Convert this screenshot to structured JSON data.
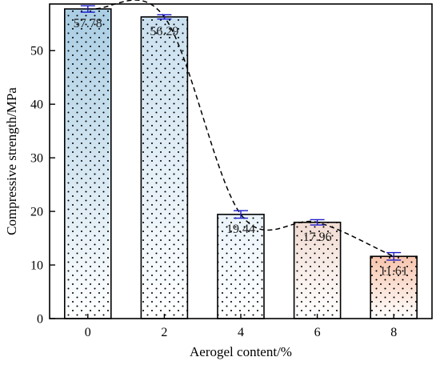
{
  "chart_data": {
    "type": "bar",
    "title": "",
    "xlabel": "Aerogel content/%",
    "ylabel": "Compressive strength/MPa",
    "categories": [
      "0",
      "2",
      "4",
      "6",
      "8"
    ],
    "values": [
      57.78,
      56.29,
      19.44,
      17.96,
      11.61
    ],
    "data_labels": [
      "57.78",
      "56.29",
      "19.44",
      "17.96",
      "11.61"
    ],
    "error": [
      0.6,
      0.4,
      0.7,
      0.5,
      0.7
    ],
    "ylim": [
      0,
      58.7
    ],
    "yticks": [
      0,
      10,
      20,
      30,
      40,
      50
    ],
    "grid": false,
    "legend": "none",
    "trend_line": "dashed smooth curve through bar tops",
    "colors": {
      "bar_top_cool": "#a9cde3",
      "bar_mid": "#eaf3fa",
      "bar_warm": "#f7c4ac",
      "error_bar": "#1a1acc",
      "pattern_dots": "#000000"
    }
  }
}
